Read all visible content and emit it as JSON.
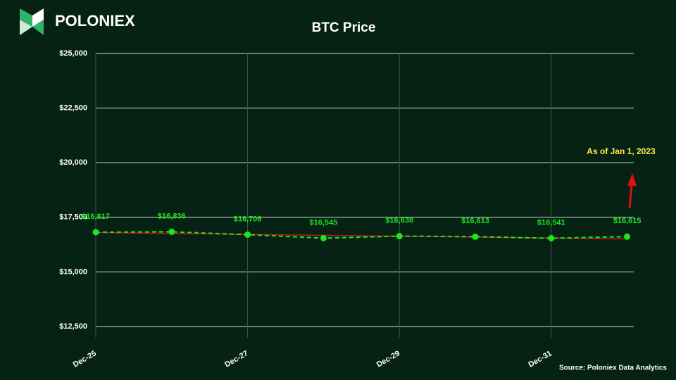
{
  "header": {
    "logo": "POLONIEX"
  },
  "chart_data": {
    "type": "line",
    "title": "BTC Price",
    "categories": [
      "Dec-25",
      null,
      "Dec-27",
      null,
      "Dec-29",
      null,
      "Dec-31",
      null
    ],
    "series": [
      {
        "color": "#1ee61e",
        "values": [
          16817,
          16836,
          16706,
          16545,
          16638,
          16613,
          16541,
          16615
        ],
        "value_labels": [
          "$16,817",
          "$16,836",
          "$16,706",
          "$16,545",
          "$16,638",
          "$16,613",
          "$16,541",
          "$16,615"
        ]
      }
    ],
    "trendline": {
      "color": "#c8141e",
      "values": [
        16800,
        16510
      ]
    },
    "ylim": [
      12000,
      25000
    ],
    "yticks": [
      {
        "value": 12500,
        "label": "$12,500"
      },
      {
        "value": 15000,
        "label": "$15,000"
      },
      {
        "value": 17500,
        "label": "$17,500"
      },
      {
        "value": 20000,
        "label": "$20,000"
      },
      {
        "value": 22500,
        "label": "$22,500"
      },
      {
        "value": 25000,
        "label": "$25,000"
      }
    ],
    "grid": true,
    "annotation": "As of Jan 1, 2023",
    "source": "Source: Poloniex Data Analytics"
  }
}
